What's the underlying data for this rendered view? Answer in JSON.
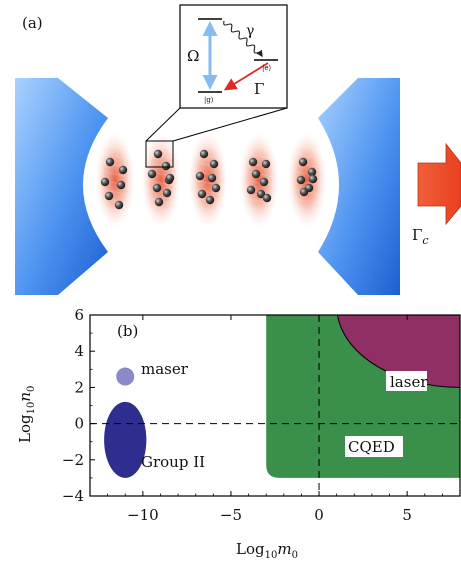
{
  "panel_a": {
    "label": "(a)",
    "inset": {
      "omega": "Ω",
      "gamma": "γ",
      "Gamma": "Γ",
      "ket_e": "|e⟩",
      "ket_g": "|g⟩"
    },
    "output_rate": "Γ",
    "output_rate_sub": "c",
    "atom_cloud_count": 5
  },
  "panel_b": {
    "label": "(b)",
    "xlabel_base": "Log",
    "xlabel_sub": "10",
    "xlabel_var": "m",
    "xlabel_var_sub": "0",
    "ylabel_base": "Log",
    "ylabel_sub": "10",
    "ylabel_var": "n",
    "ylabel_var_sub": "0",
    "xlim": [
      -13,
      8
    ],
    "ylim": [
      -4,
      6
    ],
    "xticks": [
      "−10",
      "−5",
      "0",
      "5"
    ],
    "xtick_values": [
      -10,
      -5,
      0,
      5
    ],
    "yticks": [
      "6",
      "4",
      "2",
      "0",
      "−2",
      "−4"
    ],
    "ytick_values": [
      6,
      4,
      2,
      0,
      -2,
      -4
    ],
    "regions": [
      {
        "name": "CQED",
        "color": "#3a8f4a"
      },
      {
        "name": "laser",
        "color": "#8f2f63"
      },
      {
        "name": "maser",
        "color": "#8a8ac8"
      },
      {
        "name": "Group II",
        "color": "#2e2e8e"
      }
    ]
  }
}
